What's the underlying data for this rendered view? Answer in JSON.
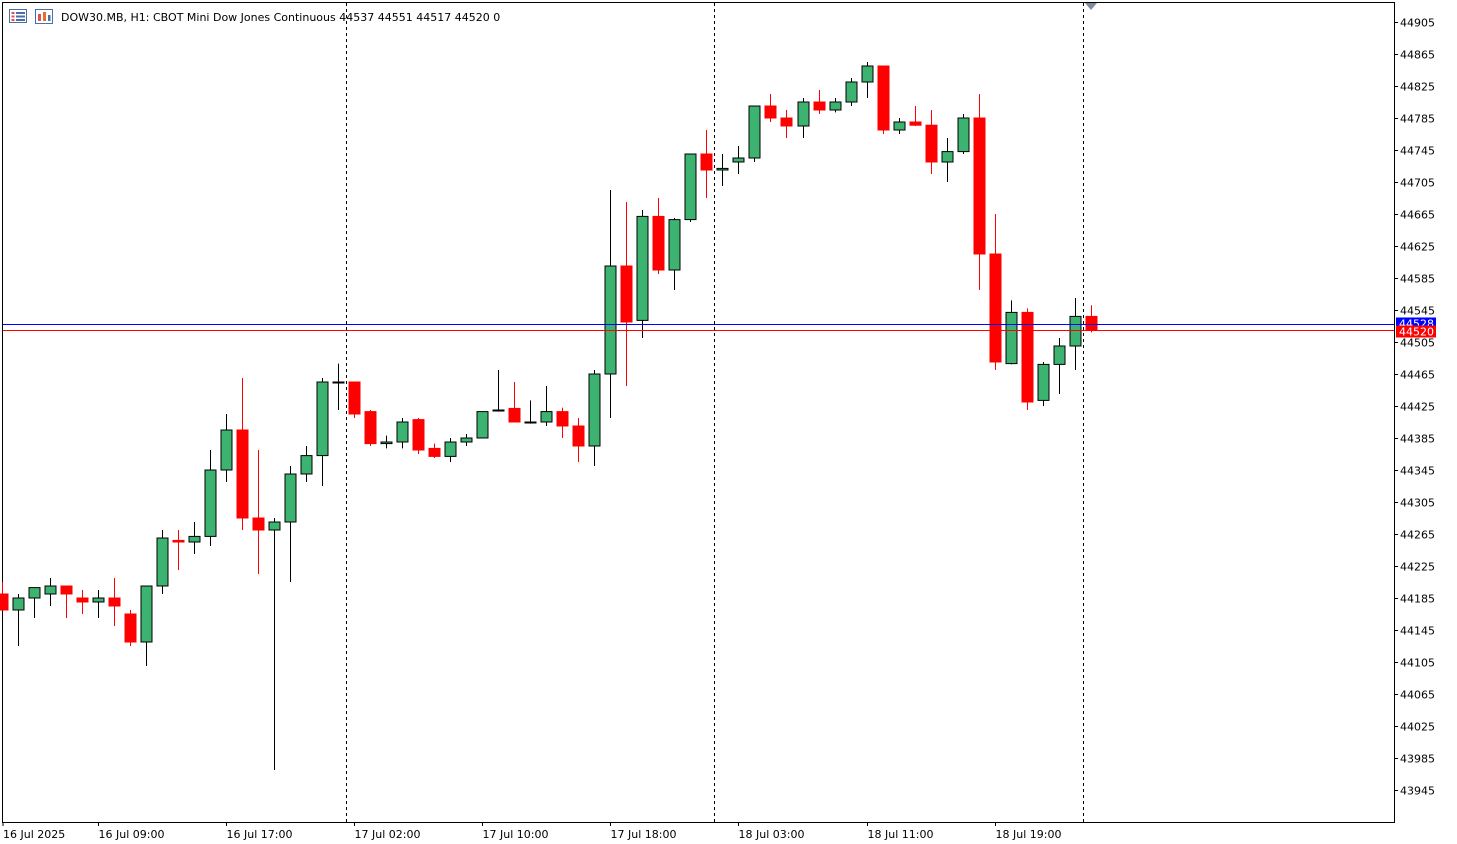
{
  "header": {
    "symbol_info": "DOW30.MB, H1:  CBOT Mini Dow Jones Continuous  44537 44551 44517 44520  0"
  },
  "icons": {
    "menu": "list-menu-icon",
    "chart": "chart-window-icon",
    "scroll_marker": "scroll-marker-icon"
  },
  "colors": {
    "bull": "#3cb371",
    "bear": "#ff0000",
    "outline": "#000000",
    "bid_line": "#0000ff",
    "ask_line": "#ff0000",
    "bid_tag": "#0000ff",
    "ask_tag": "#ff0000",
    "grid_separator": "#000000"
  },
  "chart_data": {
    "type": "candlestick",
    "timeframe": "H1",
    "y_ticks": [
      44905,
      44865,
      44825,
      44785,
      44745,
      44705,
      44665,
      44625,
      44585,
      44545,
      44505,
      44465,
      44425,
      44385,
      44345,
      44305,
      44265,
      44225,
      44185,
      44145,
      44105,
      44065,
      44025,
      43985,
      43945
    ],
    "ylim": [
      43905,
      44925
    ],
    "x_labels": [
      {
        "label": "16 Jul 2025",
        "bar": -2
      },
      {
        "label": "16 Jul 09:00",
        "bar": 6
      },
      {
        "label": "16 Jul 17:00",
        "bar": 14
      },
      {
        "label": "17 Jul 02:00",
        "bar": 22
      },
      {
        "label": "17 Jul 10:00",
        "bar": 30
      },
      {
        "label": "17 Jul 18:00",
        "bar": 38
      },
      {
        "label": "18 Jul 03:00",
        "bar": 46
      },
      {
        "label": "18 Jul 11:00",
        "bar": 54
      },
      {
        "label": "18 Jul 19:00",
        "bar": 62
      }
    ],
    "day_separators_after_bar": [
      21,
      44,
      67
    ],
    "bid_price": 44520,
    "ask_price": 44528,
    "bid_label": "44520",
    "ask_label": "44528",
    "candles": [
      [
        44190,
        44205,
        44180,
        44170
      ],
      [
        44170,
        44190,
        44125,
        44185
      ],
      [
        44185,
        44198,
        44160,
        44198
      ],
      [
        44190,
        44210,
        44175,
        44200
      ],
      [
        44200,
        44198,
        44160,
        44190
      ],
      [
        44185,
        44195,
        44165,
        44180
      ],
      [
        44180,
        44195,
        44160,
        44185
      ],
      [
        44185,
        44210,
        44150,
        44175
      ],
      [
        44165,
        44170,
        44125,
        44130
      ],
      [
        44130,
        44200,
        44100,
        44200
      ],
      [
        44200,
        44270,
        44190,
        44260
      ],
      [
        44257,
        44270,
        44220,
        44255
      ],
      [
        44255,
        44280,
        44240,
        44262
      ],
      [
        44262,
        44370,
        44250,
        44345
      ],
      [
        44345,
        44415,
        44330,
        44395
      ],
      [
        44395,
        44460,
        44270,
        44285
      ],
      [
        44285,
        44370,
        44215,
        44270
      ],
      [
        44270,
        44285,
        43970,
        44280
      ],
      [
        44280,
        44350,
        44205,
        44340
      ],
      [
        44340,
        44375,
        44330,
        44363
      ],
      [
        44363,
        44460,
        44325,
        44455
      ],
      [
        44455,
        44478,
        44420,
        44455
      ],
      [
        44455,
        44455,
        44410,
        44415
      ],
      [
        44418,
        44420,
        44375,
        44378
      ],
      [
        44378,
        44388,
        44372,
        44380
      ],
      [
        44380,
        44410,
        44372,
        44405
      ],
      [
        44408,
        44410,
        44365,
        44370
      ],
      [
        44372,
        44378,
        44360,
        44362
      ],
      [
        44362,
        44385,
        44355,
        44380
      ],
      [
        44380,
        44390,
        44375,
        44385
      ],
      [
        44385,
        44418,
        44385,
        44418
      ],
      [
        44420,
        44470,
        44418,
        44420
      ],
      [
        44422,
        44455,
        44405,
        44405
      ],
      [
        44405,
        44432,
        44403,
        44405
      ],
      [
        44405,
        44450,
        44400,
        44418
      ],
      [
        44418,
        44423,
        44385,
        44400
      ],
      [
        44400,
        44410,
        44355,
        44375
      ],
      [
        44375,
        44470,
        44350,
        44465
      ],
      [
        44465,
        44695,
        44410,
        44600
      ],
      [
        44600,
        44680,
        44450,
        44530
      ],
      [
        44532,
        44670,
        44510,
        44662
      ],
      [
        44662,
        44685,
        44590,
        44595
      ],
      [
        44595,
        44660,
        44570,
        44658
      ],
      [
        44658,
        44740,
        44655,
        44740
      ],
      [
        44740,
        44770,
        44685,
        44720
      ],
      [
        44720,
        44740,
        44700,
        44722
      ],
      [
        44730,
        44750,
        44715,
        44735
      ],
      [
        44735,
        44800,
        44730,
        44800
      ],
      [
        44800,
        44815,
        44780,
        44785
      ],
      [
        44785,
        44795,
        44760,
        44775
      ],
      [
        44775,
        44810,
        44760,
        44805
      ],
      [
        44805,
        44820,
        44790,
        44795
      ],
      [
        44795,
        44810,
        44792,
        44805
      ],
      [
        44805,
        44835,
        44800,
        44830
      ],
      [
        44830,
        44855,
        44810,
        44850
      ],
      [
        44850,
        44850,
        44765,
        44770
      ],
      [
        44770,
        44785,
        44765,
        44780
      ],
      [
        44780,
        44800,
        44775,
        44776
      ],
      [
        44776,
        44795,
        44715,
        44730
      ],
      [
        44730,
        44760,
        44705,
        44743
      ],
      [
        44743,
        44790,
        44740,
        44785
      ],
      [
        44785,
        44815,
        44570,
        44615
      ],
      [
        44615,
        44665,
        44470,
        44480
      ],
      [
        44478,
        44557,
        44477,
        44542
      ],
      [
        44542,
        44547,
        44420,
        44430
      ],
      [
        44432,
        44480,
        44425,
        44477
      ],
      [
        44477,
        44510,
        44440,
        44500
      ],
      [
        44500,
        44560,
        44470,
        44537
      ],
      [
        44537,
        44551,
        44517,
        44520
      ]
    ]
  }
}
